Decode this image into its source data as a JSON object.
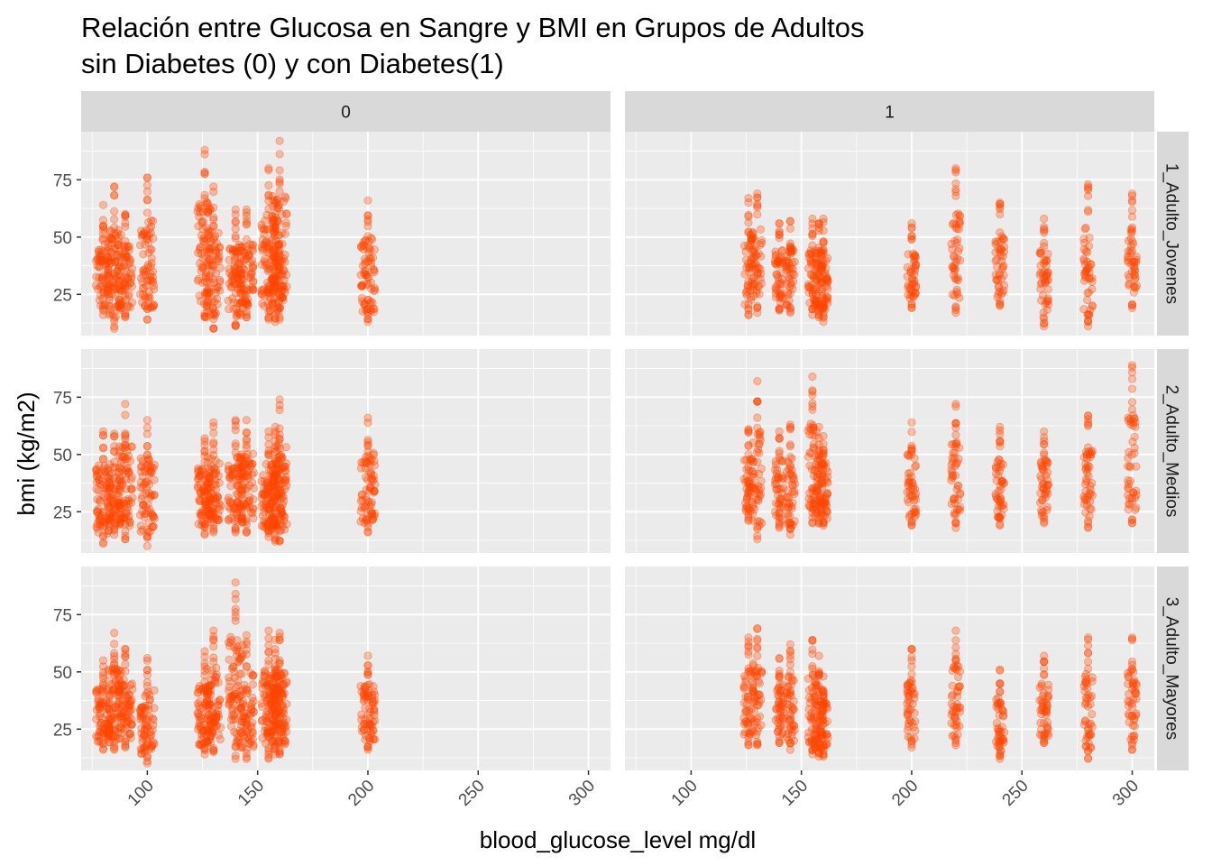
{
  "chart_data": {
    "type": "scatter",
    "title": [
      "Relación entre Glucosa en Sangre y BMI en Grupos de Adultos",
      "sin Diabetes (0) y con Diabetes(1)"
    ],
    "xlabel": "blood_glucose_level mg/dl",
    "ylabel": "bmi (kg/m2)",
    "xlim": [
      70,
      310
    ],
    "ylim": [
      7,
      96
    ],
    "x_ticks": [
      100,
      150,
      200,
      250,
      300
    ],
    "y_ticks": [
      25,
      50,
      75
    ],
    "grid": true,
    "point_color": "#FF4500",
    "point_alpha": 0.3,
    "col_facets": [
      "0",
      "1"
    ],
    "row_facets": [
      "1_Adulto_Jovenes",
      "2_Adulto_Medios",
      "3_Adulto_Mayores"
    ],
    "panels": [
      {
        "col": "0",
        "row": "1_Adulto_Jovenes",
        "columns": [
          {
            "x": 80,
            "min": 16,
            "max": 64
          },
          {
            "x": 85,
            "min": 10,
            "max": 72
          },
          {
            "x": 90,
            "min": 15,
            "max": 60
          },
          {
            "x": 100,
            "min": 14,
            "max": 76
          },
          {
            "x": 126,
            "min": 15,
            "max": 88
          },
          {
            "x": 130,
            "min": 10,
            "max": 72
          },
          {
            "x": 140,
            "min": 11,
            "max": 62
          },
          {
            "x": 145,
            "min": 15,
            "max": 62
          },
          {
            "x": 155,
            "min": 14,
            "max": 80
          },
          {
            "x": 158,
            "min": 13,
            "max": 66
          },
          {
            "x": 160,
            "min": 14,
            "max": 92
          },
          {
            "x": 200,
            "min": 13,
            "max": 66
          }
        ]
      },
      {
        "col": "1",
        "row": "1_Adulto_Jovenes",
        "columns": [
          {
            "x": 126,
            "min": 16,
            "max": 67
          },
          {
            "x": 130,
            "min": 17,
            "max": 69
          },
          {
            "x": 140,
            "min": 18,
            "max": 56
          },
          {
            "x": 145,
            "min": 17,
            "max": 57
          },
          {
            "x": 155,
            "min": 16,
            "max": 58
          },
          {
            "x": 158,
            "min": 15,
            "max": 56
          },
          {
            "x": 160,
            "min": 13,
            "max": 58
          },
          {
            "x": 200,
            "min": 19,
            "max": 56
          },
          {
            "x": 220,
            "min": 17,
            "max": 80
          },
          {
            "x": 240,
            "min": 20,
            "max": 65
          },
          {
            "x": 260,
            "min": 11,
            "max": 58
          },
          {
            "x": 280,
            "min": 11,
            "max": 73
          },
          {
            "x": 300,
            "min": 19,
            "max": 69
          }
        ]
      },
      {
        "col": "0",
        "row": "2_Adulto_Medios",
        "columns": [
          {
            "x": 80,
            "min": 11,
            "max": 60
          },
          {
            "x": 85,
            "min": 15,
            "max": 59
          },
          {
            "x": 90,
            "min": 13,
            "max": 72
          },
          {
            "x": 100,
            "min": 10,
            "max": 65
          },
          {
            "x": 126,
            "min": 15,
            "max": 57
          },
          {
            "x": 130,
            "min": 16,
            "max": 64
          },
          {
            "x": 140,
            "min": 16,
            "max": 65
          },
          {
            "x": 145,
            "min": 16,
            "max": 65
          },
          {
            "x": 155,
            "min": 14,
            "max": 60
          },
          {
            "x": 158,
            "min": 12,
            "max": 62
          },
          {
            "x": 160,
            "min": 12,
            "max": 74
          },
          {
            "x": 200,
            "min": 16,
            "max": 66
          }
        ]
      },
      {
        "col": "1",
        "row": "2_Adulto_Medios",
        "columns": [
          {
            "x": 126,
            "min": 21,
            "max": 61
          },
          {
            "x": 130,
            "min": 13,
            "max": 82
          },
          {
            "x": 140,
            "min": 18,
            "max": 60
          },
          {
            "x": 145,
            "min": 15,
            "max": 63
          },
          {
            "x": 155,
            "min": 20,
            "max": 84
          },
          {
            "x": 158,
            "min": 20,
            "max": 62
          },
          {
            "x": 160,
            "min": 19,
            "max": 58
          },
          {
            "x": 200,
            "min": 19,
            "max": 64
          },
          {
            "x": 220,
            "min": 18,
            "max": 72
          },
          {
            "x": 240,
            "min": 19,
            "max": 62
          },
          {
            "x": 260,
            "min": 20,
            "max": 60
          },
          {
            "x": 280,
            "min": 18,
            "max": 67
          },
          {
            "x": 300,
            "min": 20,
            "max": 89
          }
        ]
      },
      {
        "col": "0",
        "row": "3_Adulto_Mayores",
        "columns": [
          {
            "x": 80,
            "min": 16,
            "max": 55
          },
          {
            "x": 85,
            "min": 16,
            "max": 67
          },
          {
            "x": 90,
            "min": 17,
            "max": 60
          },
          {
            "x": 100,
            "min": 10,
            "max": 56
          },
          {
            "x": 126,
            "min": 14,
            "max": 59
          },
          {
            "x": 130,
            "min": 15,
            "max": 68
          },
          {
            "x": 140,
            "min": 12,
            "max": 89
          },
          {
            "x": 145,
            "min": 12,
            "max": 66
          },
          {
            "x": 155,
            "min": 12,
            "max": 68
          },
          {
            "x": 158,
            "min": 14,
            "max": 64
          },
          {
            "x": 160,
            "min": 14,
            "max": 67
          },
          {
            "x": 200,
            "min": 16,
            "max": 57
          }
        ]
      },
      {
        "col": "1",
        "row": "3_Adulto_Mayores",
        "columns": [
          {
            "x": 126,
            "min": 18,
            "max": 65
          },
          {
            "x": 130,
            "min": 18,
            "max": 69
          },
          {
            "x": 140,
            "min": 19,
            "max": 56
          },
          {
            "x": 145,
            "min": 16,
            "max": 62
          },
          {
            "x": 155,
            "min": 14,
            "max": 64
          },
          {
            "x": 158,
            "min": 13,
            "max": 57
          },
          {
            "x": 160,
            "min": 13,
            "max": 48
          },
          {
            "x": 200,
            "min": 17,
            "max": 60
          },
          {
            "x": 220,
            "min": 18,
            "max": 68
          },
          {
            "x": 240,
            "min": 12,
            "max": 51
          },
          {
            "x": 260,
            "min": 19,
            "max": 57
          },
          {
            "x": 280,
            "min": 12,
            "max": 65
          },
          {
            "x": 300,
            "min": 16,
            "max": 65
          }
        ]
      }
    ]
  }
}
